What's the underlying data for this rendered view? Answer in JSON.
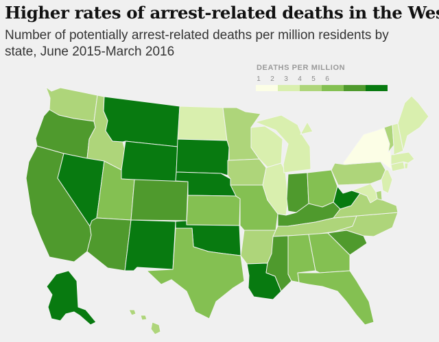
{
  "title": "Higher rates of arrest-related deaths in the West",
  "subtitle": "Number of potentially arrest-related deaths per million residents by state, June 2015-March 2016",
  "legend": {
    "title": "DEATHS PER MILLION",
    "ticks": [
      "1",
      "2",
      "3",
      "4",
      "5",
      "6"
    ],
    "colors": [
      "#fcfee6",
      "#d9efae",
      "#aed57a",
      "#84c052",
      "#4f9a2d",
      "#087a10"
    ]
  },
  "map": {
    "states": {
      "WA": 3,
      "OR": 5,
      "CA": 5,
      "ID": 3,
      "NV": 6,
      "MT": 6,
      "WY": 6,
      "UT": 4,
      "AZ": 5,
      "CO": 5,
      "NM": 6,
      "ND": 2,
      "SD": 6,
      "NE": 6,
      "KS": 4,
      "OK": 6,
      "TX": 4,
      "MN": 3,
      "IA": 3,
      "MO": 4,
      "AR": 3,
      "LA": 6,
      "WI": 2,
      "IL": 2,
      "MI": 2,
      "IN": 5,
      "OH": 4,
      "KY": 5,
      "TN": 3,
      "MS": 5,
      "AL": 4,
      "GA": 4,
      "FL": 4,
      "SC": 5,
      "NC": 3,
      "VA": 3,
      "WV": 6,
      "PA": 3,
      "NY": 1,
      "NJ": 2,
      "DE": 3,
      "MD": 2,
      "CT": 2,
      "RI": 2,
      "MA": 2,
      "VT": 3,
      "NH": 2,
      "ME": 2,
      "AK": 6,
      "HI": 3
    }
  }
}
